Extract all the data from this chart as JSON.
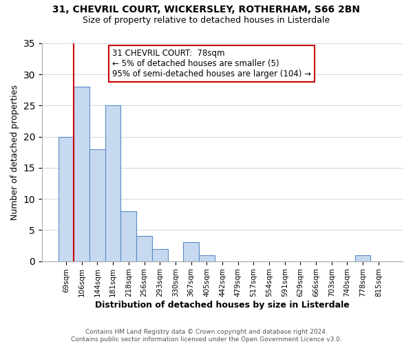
{
  "title_line1": "31, CHEVRIL COURT, WICKERSLEY, ROTHERHAM, S66 2BN",
  "title_line2": "Size of property relative to detached houses in Listerdale",
  "xlabel": "Distribution of detached houses by size in Listerdale",
  "ylabel": "Number of detached properties",
  "bin_labels": [
    "69sqm",
    "106sqm",
    "144sqm",
    "181sqm",
    "218sqm",
    "256sqm",
    "293sqm",
    "330sqm",
    "367sqm",
    "405sqm",
    "442sqm",
    "479sqm",
    "517sqm",
    "554sqm",
    "591sqm",
    "629sqm",
    "666sqm",
    "703sqm",
    "740sqm",
    "778sqm",
    "815sqm"
  ],
  "bar_heights": [
    20,
    28,
    18,
    25,
    8,
    4,
    2,
    0,
    3,
    1,
    0,
    0,
    0,
    0,
    0,
    0,
    0,
    0,
    0,
    1,
    0
  ],
  "bar_color": "#c6d9f0",
  "bar_edge_color": "#5a8ac6",
  "annotation_title": "31 CHEVRIL COURT:  78sqm",
  "annotation_line1": "← 5% of detached houses are smaller (5)",
  "annotation_line2": "95% of semi-detached houses are larger (104) →",
  "annotation_box_color": "#ffffff",
  "annotation_box_edge_color": "#cc0000",
  "vline_x": 0.5,
  "vline_color": "#cc0000",
  "ylim": [
    0,
    35
  ],
  "yticks": [
    0,
    5,
    10,
    15,
    20,
    25,
    30,
    35
  ],
  "footer_line1": "Contains HM Land Registry data © Crown copyright and database right 2024.",
  "footer_line2": "Contains public sector information licensed under the Open Government Licence v3.0.",
  "bg_color": "#ffffff",
  "grid_color": "#c8d8e8"
}
